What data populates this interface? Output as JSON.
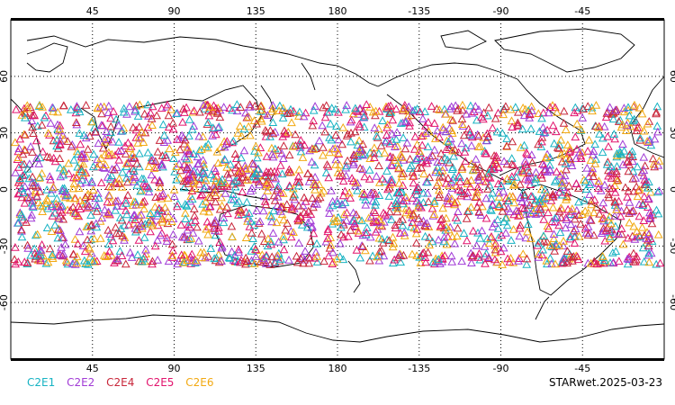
{
  "colors": {
    "C2E1": "#17b3c3",
    "C2E2": "#a13bd6",
    "C2E4": "#c8263a",
    "C2E5": "#e2146d",
    "C2E6": "#f2a912"
  },
  "legend": [
    "C2E1",
    "C2E2",
    "C2E4",
    "C2E5",
    "C2E6"
  ],
  "stamp": "STARwet.2025-03-23",
  "lon_labels_top": [
    "45",
    "90",
    "135",
    "180",
    "-135",
    "-90",
    "-45"
  ],
  "lon_labels_bottom": [
    "45",
    "90",
    "135",
    "180",
    "-135",
    "-90",
    "-45"
  ],
  "lat_labels": [
    "60",
    "30",
    "0",
    "-30",
    "-60"
  ],
  "map": {
    "lon_range": [
      0,
      360
    ],
    "lat_range": [
      -90,
      90
    ],
    "marker": "triangle-outline",
    "observation_lat_band": [
      -40,
      45
    ]
  }
}
